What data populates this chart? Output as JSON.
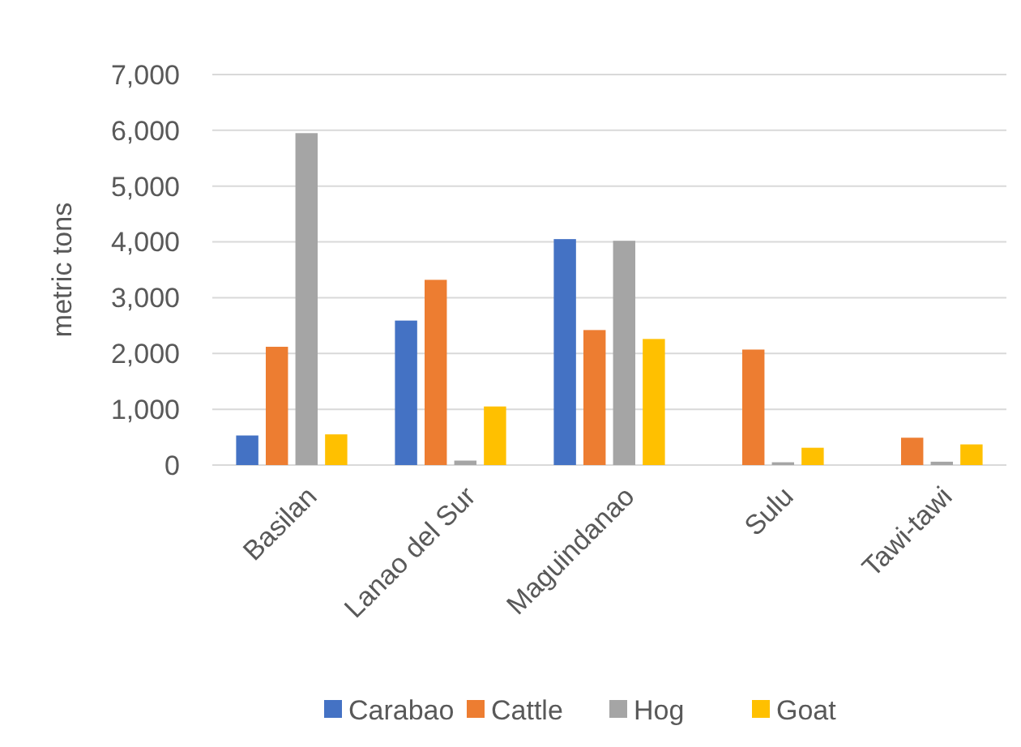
{
  "chart_data": {
    "type": "bar",
    "ylabel": "metric tons",
    "categories": [
      "Basilan",
      "Lanao del Sur",
      "Maguindanao",
      "Sulu",
      "Tawi-tawi"
    ],
    "series": [
      {
        "name": "Carabao",
        "color": "#4472c4",
        "values": [
          530,
          2590,
          4050,
          0,
          0
        ]
      },
      {
        "name": "Cattle",
        "color": "#ed7d31",
        "values": [
          2120,
          3320,
          2420,
          2070,
          490
        ]
      },
      {
        "name": "Hog",
        "color": "#a5a5a5",
        "values": [
          5950,
          80,
          4020,
          50,
          60
        ]
      },
      {
        "name": "Goat",
        "color": "#ffc000",
        "values": [
          550,
          1050,
          2260,
          310,
          370
        ]
      }
    ],
    "ylim": [
      0,
      7000
    ],
    "yticks": [
      {
        "value": 0,
        "label": "0"
      },
      {
        "value": 1000,
        "label": "1,000"
      },
      {
        "value": 2000,
        "label": "2,000"
      },
      {
        "value": 3000,
        "label": "3,000"
      },
      {
        "value": 4000,
        "label": "4,000"
      },
      {
        "value": 5000,
        "label": "5,000"
      },
      {
        "value": 6000,
        "label": "6,000"
      },
      {
        "value": 7000,
        "label": "7,000"
      }
    ],
    "grid": "y",
    "legend": "bottom"
  }
}
